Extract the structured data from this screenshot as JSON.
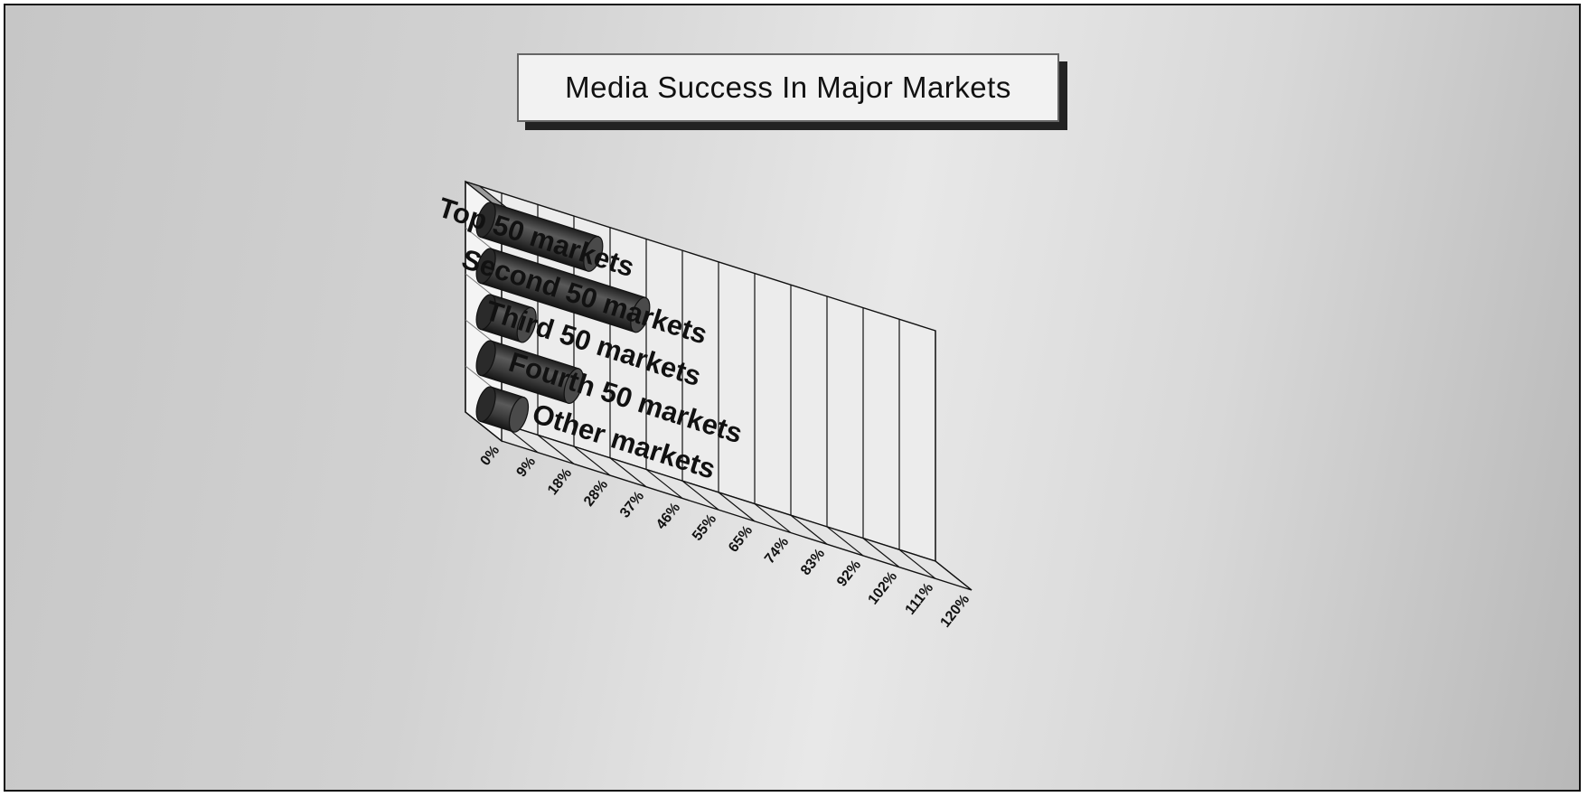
{
  "chart_data": {
    "type": "bar",
    "orientation": "horizontal",
    "style": "3d-cylinder",
    "title": "Media Success In Major Markets",
    "categories": [
      "Top 50 markets",
      "Second 50 markets",
      "Third 50 markets",
      "Fourth 50 markets",
      "Other markets"
    ],
    "values": [
      28,
      40,
      11,
      23,
      9
    ],
    "xticks": [
      "0%",
      "9%",
      "18%",
      "28%",
      "37%",
      "46%",
      "55%",
      "65%",
      "74%",
      "83%",
      "92%",
      "102%",
      "111%",
      "120%"
    ],
    "xlim": [
      0,
      120
    ],
    "grid": true,
    "bar_color": "#3a3a3a"
  }
}
